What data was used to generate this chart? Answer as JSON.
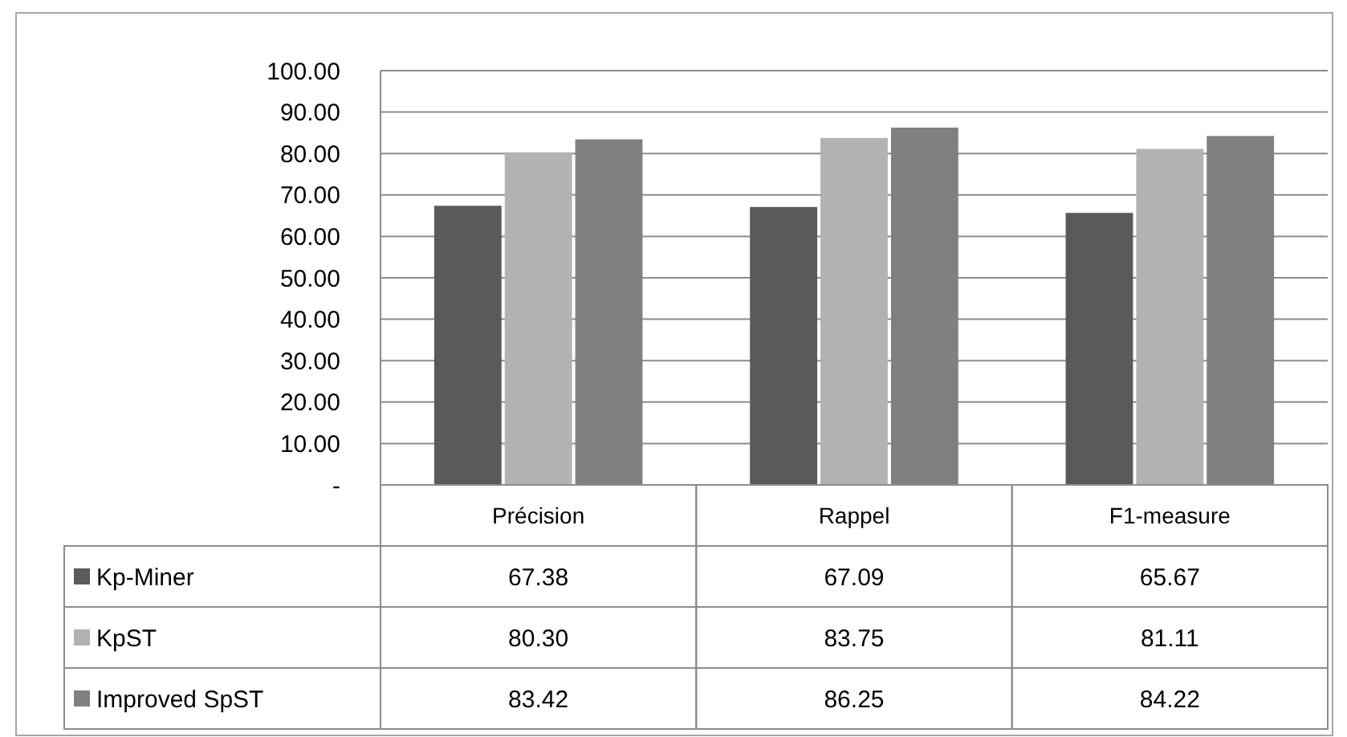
{
  "chart_data": {
    "type": "bar",
    "categories": [
      "Précision",
      "Rappel",
      "F1-measure"
    ],
    "series": [
      {
        "name": "Kp-Miner",
        "color": "#5a5a5a",
        "values": [
          67.38,
          67.09,
          65.67
        ],
        "value_labels": [
          "67.38",
          "67.09",
          "65.67"
        ]
      },
      {
        "name": "KpST",
        "color": "#b2b2b2",
        "values": [
          80.3,
          83.75,
          81.11
        ],
        "value_labels": [
          "80.30",
          "83.75",
          "81.11"
        ]
      },
      {
        "name": "Improved SpST",
        "color": "#808080",
        "values": [
          83.42,
          86.25,
          84.22
        ],
        "value_labels": [
          "83.42",
          "86.25",
          "84.22"
        ]
      }
    ],
    "ylim": [
      0,
      100
    ],
    "yticks": [
      {
        "value": 0,
        "label": "-"
      },
      {
        "value": 10,
        "label": "10.00"
      },
      {
        "value": 20,
        "label": "20.00"
      },
      {
        "value": 30,
        "label": "30.00"
      },
      {
        "value": 40,
        "label": "40.00"
      },
      {
        "value": 50,
        "label": "50.00"
      },
      {
        "value": 60,
        "label": "60.00"
      },
      {
        "value": 70,
        "label": "70.00"
      },
      {
        "value": 80,
        "label": "80.00"
      },
      {
        "value": 90,
        "label": "90.00"
      },
      {
        "value": 100,
        "label": "100.00"
      }
    ],
    "grid": "y",
    "legend": "bottom"
  }
}
